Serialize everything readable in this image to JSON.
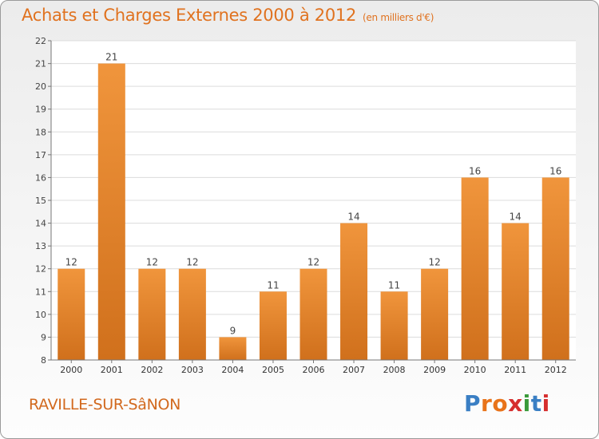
{
  "header": {
    "title": "Achats et Charges Externes 2000 à 2012",
    "subtitle": "(en milliers d'€)"
  },
  "footer": {
    "city": "RAVILLE-SUR-SâNON",
    "logo_text": "Proxiti",
    "logo_colors": [
      "#3a7fc4",
      "#e8731a",
      "#e8731a",
      "#d62f2f",
      "#3a9a3a",
      "#3a7fc4",
      "#d62f2f"
    ]
  },
  "chart_data": {
    "type": "bar",
    "categories": [
      "2000",
      "2001",
      "2002",
      "2003",
      "2004",
      "2005",
      "2006",
      "2007",
      "2008",
      "2009",
      "2010",
      "2011",
      "2012"
    ],
    "values": [
      12,
      21,
      12,
      12,
      9,
      11,
      12,
      14,
      11,
      12,
      16,
      14,
      16
    ],
    "data_labels": [
      "12",
      "21",
      "12",
      "12",
      "9",
      "11",
      "12",
      "14",
      "11",
      "12",
      "16",
      "14",
      "16"
    ],
    "title": "Achats et Charges Externes 2000 à 2012",
    "xlabel": "",
    "ylabel": "",
    "ylim": [
      8,
      22
    ],
    "yticks": [
      8,
      9,
      10,
      11,
      12,
      13,
      14,
      15,
      16,
      17,
      18,
      19,
      20,
      21,
      22
    ],
    "grid": true,
    "bar_color": "#f0953c",
    "bar_color_dark": "#d0701c"
  }
}
